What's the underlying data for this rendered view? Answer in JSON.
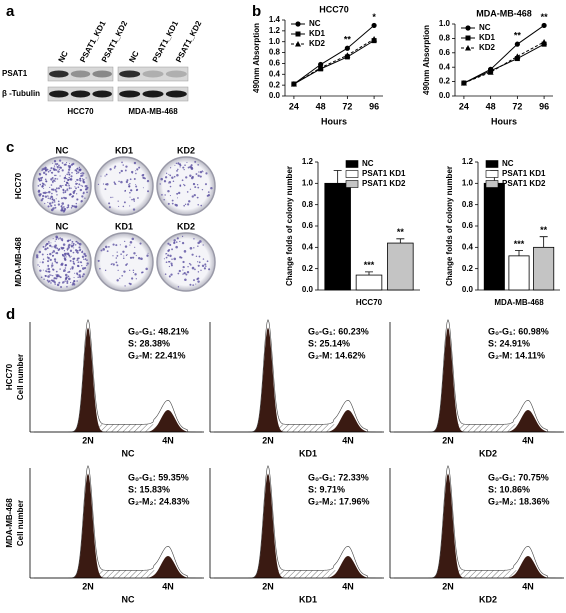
{
  "panel_labels": [
    "a",
    "b",
    "c",
    "d"
  ],
  "blot": {
    "lanes": [
      "NC",
      "PSAT1_KD1",
      "PSAT1_KD2",
      "NC",
      "PSAT1_KD1",
      "PSAT1_KD2"
    ],
    "rows": [
      "PSAT1",
      "β -Tubulin"
    ],
    "cell_lines": [
      "HCC70",
      "MDA-MB-468"
    ]
  },
  "chart_data": [
    {
      "type": "line",
      "title": "HCC70",
      "xlabel": "Hours",
      "ylabel": "490nm Absorption",
      "x": [
        24,
        48,
        72,
        96
      ],
      "xlim": [
        16,
        104
      ],
      "xticks": [
        24,
        48,
        72,
        96
      ],
      "ylim": [
        0,
        1.4
      ],
      "yticks": [
        {
          "value": 0,
          "label": "0.0"
        },
        0.2,
        0.4,
        0.6,
        0.8,
        {
          "value": 1,
          "label": "1.0"
        },
        1.2,
        1.4
      ],
      "legend": "upper left",
      "series": [
        {
          "name": "NC",
          "color": "#000000",
          "marker": "circle",
          "linestyle": "solid",
          "values": [
            0.22,
            0.58,
            0.88,
            1.3
          ]
        },
        {
          "name": "KD1",
          "color": "#000000",
          "marker": "square",
          "linestyle": "solid",
          "values": [
            0.22,
            0.5,
            0.72,
            1.02
          ]
        },
        {
          "name": "KD2",
          "color": "#000000",
          "marker": "triangle",
          "linestyle": "dashed",
          "values": [
            0.22,
            0.52,
            0.75,
            1.05
          ]
        }
      ],
      "annotations": [
        {
          "text": "**",
          "x": 72
        },
        {
          "text": "*",
          "x": 96
        }
      ]
    },
    {
      "type": "line",
      "title": "MDA-MB-468",
      "xlabel": "Hours",
      "ylabel": "490nm Absorption",
      "x": [
        24,
        48,
        72,
        96
      ],
      "xlim": [
        16,
        104
      ],
      "xticks": [
        24,
        48,
        72,
        96
      ],
      "ylim": [
        0,
        1.0
      ],
      "yticks": [
        {
          "value": 0,
          "label": "0.0"
        },
        0.2,
        0.4,
        0.6,
        0.8,
        {
          "value": 1,
          "label": "1.0"
        }
      ],
      "legend": "upper left",
      "series": [
        {
          "name": "NC",
          "color": "#000000",
          "marker": "circle",
          "linestyle": "solid",
          "values": [
            0.18,
            0.37,
            0.72,
            0.98
          ]
        },
        {
          "name": "KD1",
          "color": "#000000",
          "marker": "square",
          "linestyle": "solid",
          "values": [
            0.18,
            0.35,
            0.52,
            0.72
          ]
        },
        {
          "name": "KD2",
          "color": "#000000",
          "marker": "triangle",
          "linestyle": "dashed",
          "values": [
            0.18,
            0.33,
            0.55,
            0.75
          ]
        }
      ],
      "annotations": [
        {
          "text": "**",
          "x": 72
        },
        {
          "text": "**",
          "x": 96
        }
      ]
    },
    {
      "type": "bar",
      "xlabel": "HCC70",
      "ylabel": "Change folds of colony number",
      "ylim": [
        0,
        1.2
      ],
      "yticks": [
        {
          "value": 0,
          "label": "0.0"
        },
        0.2,
        0.4,
        0.6,
        0.8,
        {
          "value": 1,
          "label": "1.0"
        },
        1.2
      ],
      "legend": "upper right",
      "series": [
        {
          "name": "NC",
          "color": "#000000",
          "values": [
            1.0
          ],
          "errors": [
            0.12
          ]
        },
        {
          "name": "PSAT1 KD1",
          "color": "#ffffff",
          "values": [
            0.14
          ],
          "errors": [
            0.03
          ],
          "annotation": "***"
        },
        {
          "name": "PSAT1 KD2",
          "color": "#c4c4c4",
          "values": [
            0.44
          ],
          "errors": [
            0.04
          ],
          "annotation": "**"
        }
      ]
    },
    {
      "type": "bar",
      "xlabel": "MDA-MB-468",
      "ylabel": "Change folds of colony number",
      "ylim": [
        0,
        1.2
      ],
      "yticks": [
        {
          "value": 0,
          "label": "0.0"
        },
        0.2,
        0.4,
        0.6,
        0.8,
        {
          "value": 1,
          "label": "1.0"
        },
        1.2
      ],
      "legend": "upper right",
      "series": [
        {
          "name": "NC",
          "color": "#000000",
          "values": [
            1.0
          ],
          "errors": [
            0.12
          ]
        },
        {
          "name": "PSAT1 KD1",
          "color": "#ffffff",
          "values": [
            0.32
          ],
          "errors": [
            0.05
          ],
          "annotation": "***"
        },
        {
          "name": "PSAT1 KD2",
          "color": "#c4c4c4",
          "values": [
            0.4
          ],
          "errors": [
            0.1
          ],
          "annotation": "**"
        }
      ]
    }
  ],
  "colony": {
    "columns": [
      "NC",
      "KD1",
      "KD2"
    ],
    "rows": [
      "HCC70",
      "MDA-MB-468"
    ]
  },
  "flow": {
    "ylabel": "Cell number",
    "rows": [
      "HCC70",
      "MDA-MB-468"
    ],
    "peaks": [
      "2N",
      "4N"
    ],
    "panels": [
      [
        {
          "name": "NC",
          "lines": [
            "G₀-G₁: 48.21%",
            "S: 28.38%",
            "G₂-M: 22.41%"
          ]
        },
        {
          "name": "KD1",
          "lines": [
            "G₀-G₁: 60.23%",
            "S: 25.14%",
            "G₂-M: 14.62%"
          ]
        },
        {
          "name": "KD2",
          "lines": [
            "G₀-G₁: 60.98%",
            "S: 24.91%",
            "G₂-M: 14.11%"
          ]
        }
      ],
      [
        {
          "name": "NC",
          "lines": [
            "G₀-G₁: 59.35%",
            "S: 15.83%",
            "G₂-M₂: 24.83%"
          ]
        },
        {
          "name": "KD1",
          "lines": [
            "G₀-G₁: 72.33%",
            "S: 9.71%",
            "G₂-M₂: 17.96%"
          ]
        },
        {
          "name": "KD2",
          "lines": [
            "G₀-G₁: 70.75%",
            "S: 10.86%",
            "G₂-M₂: 18.36%"
          ]
        }
      ]
    ]
  }
}
